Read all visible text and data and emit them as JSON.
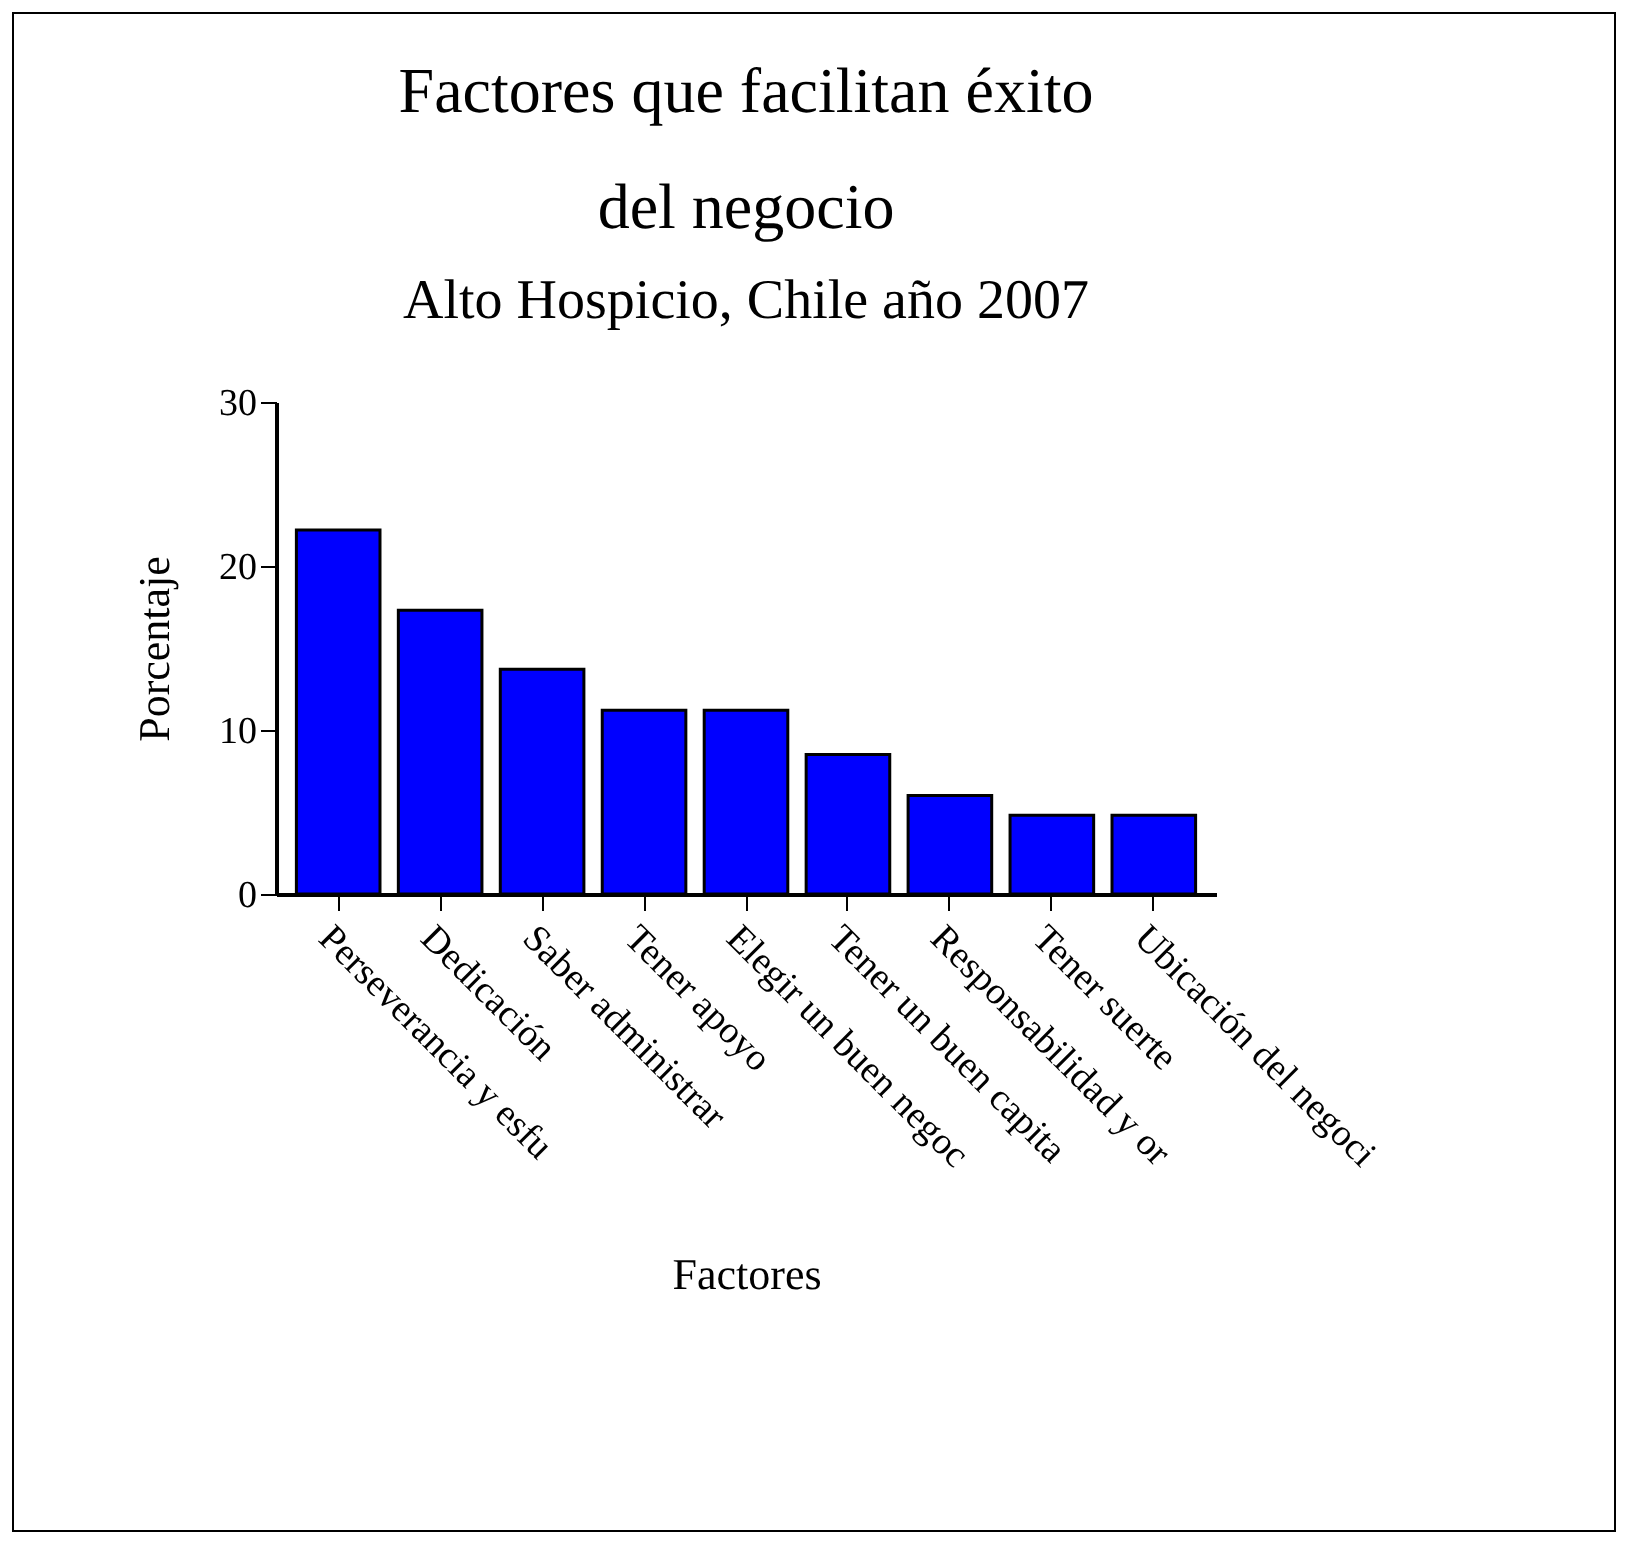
{
  "chart_data": {
    "type": "bar",
    "title": [
      "Factores que facilitan éxito",
      "del negocio"
    ],
    "subtitle": "Alto Hospicio, Chile año 2007",
    "xlabel": "Factores",
    "ylabel": "Porcentaje",
    "categories": [
      "Perseverancia y esfu",
      "Dedicación",
      "Saber administrar",
      "Tener apoyo",
      "Elegir un buen negoc",
      "Tener un buen capita",
      "Responsabilidad y or",
      "Tener suerte",
      "Ubicación del negoci"
    ],
    "values": [
      22.2,
      17.3,
      13.7,
      11.2,
      11.2,
      8.5,
      6.0,
      4.8,
      4.8
    ],
    "color": "#0000ff",
    "ylim": [
      0,
      30
    ],
    "yticks": [
      0,
      10,
      20,
      30
    ],
    "grid": false
  }
}
